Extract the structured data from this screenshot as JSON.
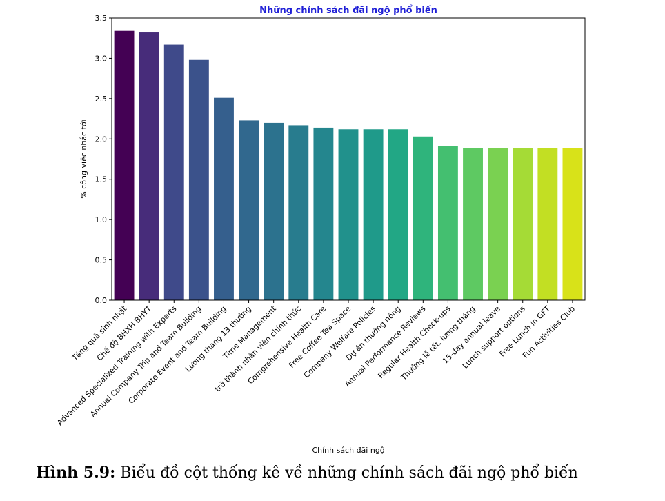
{
  "chart_data": {
    "type": "bar",
    "title": "Những chính sách đãi ngộ phổ biến",
    "xlabel": "Chính sách đãi ngộ",
    "ylabel": "% công việc nhắc tới",
    "ylim": [
      0,
      3.5
    ],
    "yticks": [
      "0.0",
      "0.5",
      "1.0",
      "1.5",
      "2.0",
      "2.5",
      "3.0",
      "3.5"
    ],
    "title_color": "#1f1fd6",
    "colormap": "viridis",
    "grid": false,
    "categories": [
      "Tặng quà sinh nhật",
      "Chế độ BHXH BHYT",
      "Advanced Specialized Training with Experts",
      "Annual Company Trip and Team Building",
      "Corporate Event and Team Building",
      "Lương tháng 13 thưởng",
      "Time Management",
      "trở thành nhân viên chính thức",
      "Comprehensive Health Care",
      "Free Coffee Tea Space",
      "Company Welfare Policies",
      "Dự án thưởng nóng",
      "Annual Performance Reviews",
      "Regular Health Check-ups",
      "Thưởng lễ tết, lương tháng",
      "15-day annual leave",
      "Lunch support options",
      "Free Lunch in GFT",
      "Fun Activities Club"
    ],
    "values": [
      3.34,
      3.32,
      3.17,
      2.98,
      2.51,
      2.23,
      2.2,
      2.17,
      2.14,
      2.12,
      2.12,
      2.12,
      2.03,
      1.91,
      1.89,
      1.89,
      1.89,
      1.89,
      1.89
    ],
    "colors": [
      "#440154",
      "#472c7a",
      "#3f4a8a",
      "#3b528b",
      "#355f8d",
      "#31688e",
      "#2c728e",
      "#287c8e",
      "#24868e",
      "#21918c",
      "#1f9a8a",
      "#22a785",
      "#2fb47c",
      "#44bf70",
      "#5ec962",
      "#7ad151",
      "#a5db36",
      "#c2df23",
      "#d8e219"
    ]
  },
  "caption": {
    "label": "Hình 5.9:",
    "text": " Biểu đồ cột thống kê về những chính sách đãi ngộ phổ biến"
  }
}
